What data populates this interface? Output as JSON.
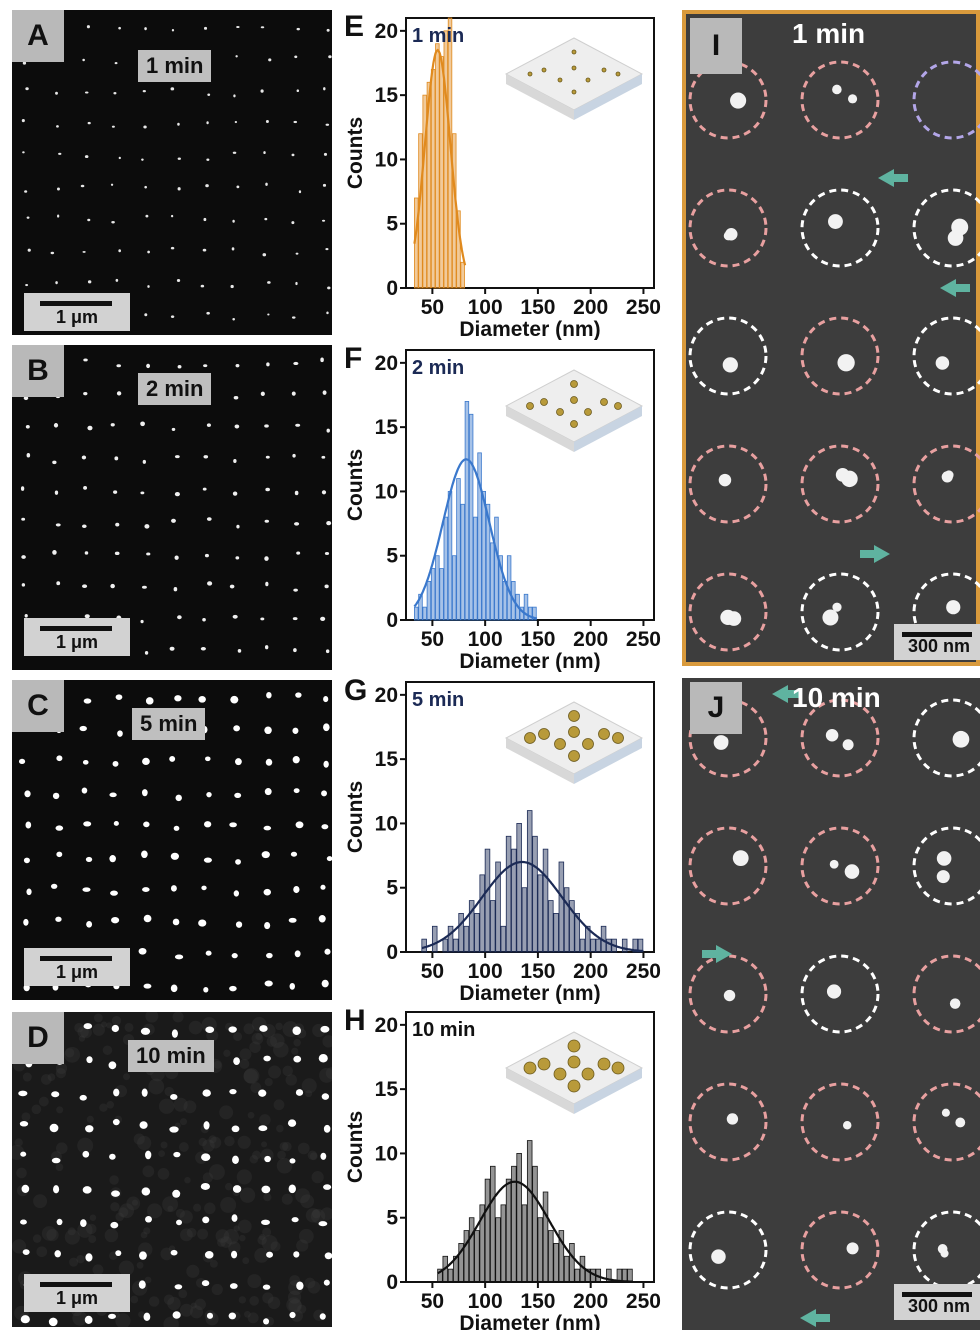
{
  "panels_sem": [
    {
      "letter": "A",
      "time": "1 min",
      "scale": "1 μm"
    },
    {
      "letter": "B",
      "time": "2 min",
      "scale": "1 μm"
    },
    {
      "letter": "C",
      "time": "5 min",
      "scale": "1 μm"
    },
    {
      "letter": "D",
      "time": "10 min",
      "scale": "1 μm"
    }
  ],
  "panels_tem": [
    {
      "letter": "I",
      "time": "1 min",
      "scale": "300 nm"
    },
    {
      "letter": "J",
      "time": "10 min",
      "scale": "300 nm"
    }
  ],
  "colors": {
    "orange": "#e08a1e",
    "blue": "#3a78cc",
    "navy": "#1b2a55",
    "black": "#111111",
    "pink_ring": "#e8a0a0",
    "white_ring": "#ffffff",
    "violet_ring": "#b3a6e8",
    "teal_arrow": "#5fb3a0",
    "frame": "#d99a3c"
  },
  "chart_data": [
    {
      "type": "bar",
      "panel": "E",
      "title": "1 min",
      "xlabel": "Diameter (nm)",
      "ylabel": "Counts",
      "xlim": [
        25,
        260
      ],
      "ylim": [
        0,
        21
      ],
      "xticks": [
        50,
        100,
        150,
        200,
        250
      ],
      "yticks": [
        0,
        5,
        10,
        15,
        20
      ],
      "bins": [
        33,
        37,
        41,
        45,
        49,
        53,
        57,
        61,
        65,
        69,
        73,
        77
      ],
      "values": [
        7,
        12,
        15,
        16,
        17,
        19,
        18,
        20,
        21,
        12,
        6,
        2
      ],
      "fit": {
        "mu": 55,
        "sigma": 12,
        "peak": 18.5
      },
      "color": "orange"
    },
    {
      "type": "bar",
      "panel": "F",
      "title": "2 min",
      "xlabel": "Diameter (nm)",
      "ylabel": "Counts",
      "xlim": [
        25,
        260
      ],
      "ylim": [
        0,
        21
      ],
      "xticks": [
        50,
        100,
        150,
        200,
        250
      ],
      "yticks": [
        0,
        5,
        10,
        15,
        20
      ],
      "bins": [
        33,
        37,
        41,
        45,
        49,
        53,
        57,
        61,
        65,
        69,
        73,
        77,
        81,
        85,
        89,
        93,
        97,
        101,
        105,
        109,
        113,
        117,
        121,
        125,
        129,
        133,
        137,
        141,
        145
      ],
      "values": [
        1,
        2,
        1,
        3,
        4,
        5,
        4,
        8,
        10,
        5,
        11,
        9,
        17,
        16,
        8,
        13,
        10,
        9,
        6,
        8,
        5,
        3,
        5,
        3,
        2,
        1,
        2,
        1,
        1
      ],
      "fit": {
        "mu": 82,
        "sigma": 22,
        "peak": 12.5
      },
      "color": "blue"
    },
    {
      "type": "bar",
      "panel": "G",
      "title": "5 min",
      "xlabel": "Diameter (nm)",
      "ylabel": "Counts",
      "xlim": [
        25,
        260
      ],
      "ylim": [
        0,
        21
      ],
      "xticks": [
        50,
        100,
        150,
        200,
        250
      ],
      "yticks": [
        0,
        5,
        10,
        15,
        20
      ],
      "bins": [
        40,
        45,
        50,
        55,
        60,
        65,
        70,
        75,
        80,
        85,
        90,
        95,
        100,
        105,
        110,
        115,
        120,
        125,
        130,
        135,
        140,
        145,
        150,
        155,
        160,
        165,
        170,
        175,
        180,
        185,
        190,
        195,
        200,
        205,
        210,
        215,
        220,
        225,
        230,
        235,
        240,
        245
      ],
      "values": [
        1,
        0,
        2,
        0,
        1,
        2,
        1,
        3,
        2,
        4,
        3,
        6,
        8,
        4,
        7,
        2,
        9,
        8,
        10,
        5,
        11,
        9,
        6,
        8,
        4,
        3,
        7,
        5,
        4,
        3,
        1,
        2,
        1,
        1,
        2,
        1,
        1,
        0,
        1,
        0,
        1,
        1
      ],
      "fit": {
        "mu": 135,
        "sigma": 38,
        "peak": 7
      },
      "color": "navy"
    },
    {
      "type": "bar",
      "panel": "H",
      "title": "10 min",
      "xlabel": "Diameter (nm)",
      "ylabel": "Counts",
      "xlim": [
        25,
        260
      ],
      "ylim": [
        0,
        21
      ],
      "xticks": [
        50,
        100,
        150,
        200,
        250
      ],
      "yticks": [
        0,
        5,
        10,
        15,
        20
      ],
      "bins": [
        55,
        60,
        65,
        70,
        75,
        80,
        85,
        90,
        95,
        100,
        105,
        110,
        115,
        120,
        125,
        130,
        135,
        140,
        145,
        150,
        155,
        160,
        165,
        170,
        175,
        180,
        185,
        190,
        195,
        200,
        205,
        210,
        215,
        220,
        225,
        230,
        235
      ],
      "values": [
        1,
        2,
        1,
        2,
        3,
        4,
        5,
        4,
        6,
        8,
        9,
        5,
        6,
        8,
        9,
        10,
        6,
        11,
        9,
        5,
        7,
        4,
        3,
        4,
        2,
        3,
        1,
        2,
        1,
        1,
        1,
        0,
        1,
        0,
        1,
        1,
        1
      ],
      "fit": {
        "mu": 128,
        "sigma": 33,
        "peak": 7.8
      },
      "color": "black"
    }
  ]
}
